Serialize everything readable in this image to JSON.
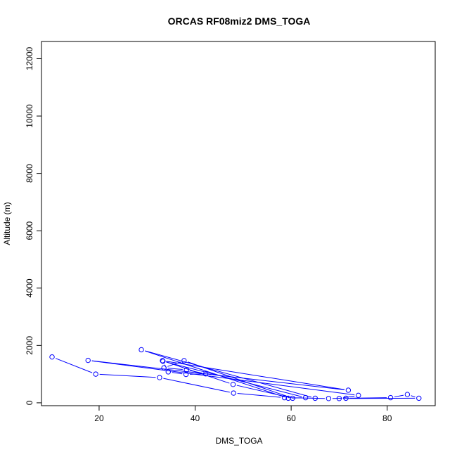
{
  "chart_data": {
    "type": "scatter",
    "title": "ORCAS RF08miz2 DMS_TOGA",
    "xlabel": "DMS_TOGA",
    "ylabel": "Altitude (m)",
    "xlim": [
      8,
      90
    ],
    "ylim": [
      -100,
      12600
    ],
    "xticks": [
      20,
      40,
      60,
      80
    ],
    "yticks": [
      0,
      2000,
      4000,
      6000,
      8000,
      10000,
      12000
    ],
    "grid": false,
    "legend": "none",
    "series_color": "#0000ff",
    "points": [
      {
        "x": 10.2,
        "y": 1600
      },
      {
        "x": 19.3,
        "y": 1000
      },
      {
        "x": 32.6,
        "y": 880
      },
      {
        "x": 48.0,
        "y": 340
      },
      {
        "x": 58.6,
        "y": 180
      },
      {
        "x": 67.8,
        "y": 150
      },
      {
        "x": 71.4,
        "y": 160
      },
      {
        "x": 80.7,
        "y": 180
      },
      {
        "x": 84.2,
        "y": 290
      },
      {
        "x": 86.6,
        "y": 160
      },
      {
        "x": 70.0,
        "y": 150
      },
      {
        "x": 74.0,
        "y": 260
      },
      {
        "x": 17.7,
        "y": 1480
      },
      {
        "x": 71.9,
        "y": 440
      },
      {
        "x": 33.2,
        "y": 1470
      },
      {
        "x": 47.9,
        "y": 640
      },
      {
        "x": 60.3,
        "y": 160
      },
      {
        "x": 37.7,
        "y": 1470
      },
      {
        "x": 33.5,
        "y": 1220
      },
      {
        "x": 38.2,
        "y": 1150
      },
      {
        "x": 42.2,
        "y": 1010
      },
      {
        "x": 38.1,
        "y": 990
      },
      {
        "x": 34.4,
        "y": 1080
      },
      {
        "x": 33.3,
        "y": 1450
      },
      {
        "x": 63.0,
        "y": 180
      },
      {
        "x": 59.4,
        "y": 160
      },
      {
        "x": 28.8,
        "y": 1850
      },
      {
        "x": 65.0,
        "y": 160
      }
    ]
  }
}
